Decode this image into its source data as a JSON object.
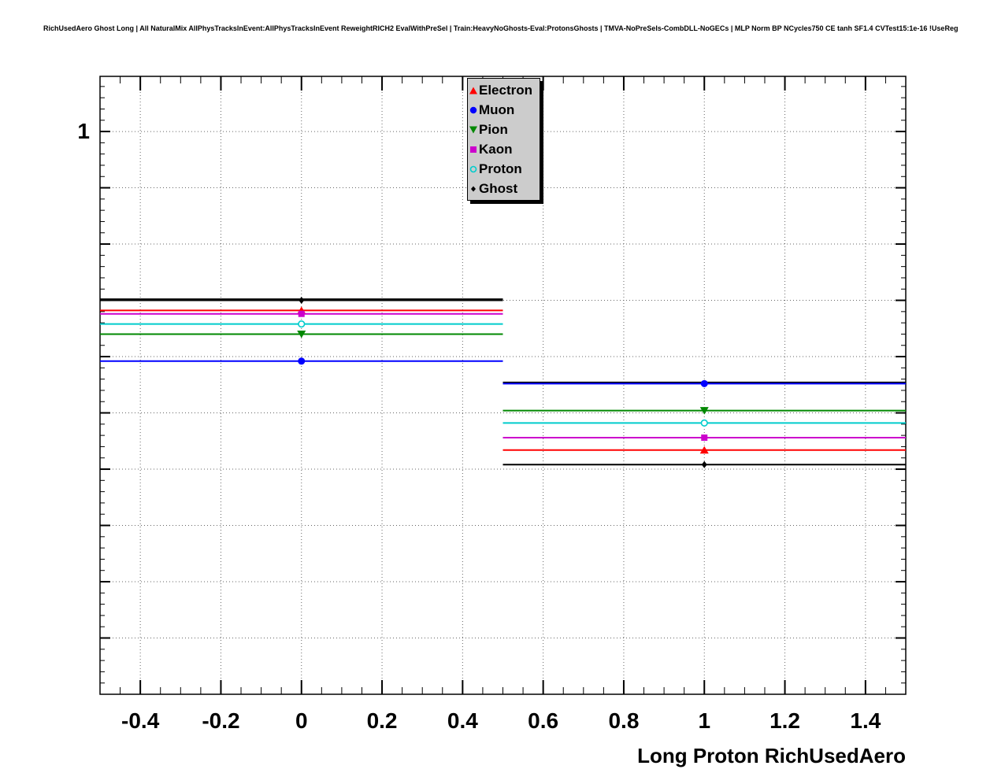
{
  "chart_data": {
    "type": "scatter",
    "title": "RichUsedAero Ghost Long | All NaturalMix AllPhysTracksInEvent:AllPhysTracksInEvent ReweightRICH2 EvalWithPreSel | Train:HeavyNoGhosts-Eval:ProtonsGhosts | TMVA-NoPreSels-CombDLL-NoGECs | MLP Norm BP NCycles750 CE tanh SF1.4 CVTest15:1e-16 !UseReg",
    "xlabel": "Long Proton RichUsedAero",
    "ylabel": "",
    "xlim": [
      -0.5,
      1.5
    ],
    "ylim": [
      0.5,
      1.049
    ],
    "x_major_ticks": [
      -0.4,
      -0.2,
      0,
      0.2,
      0.4,
      0.6,
      0.8,
      1,
      1.2,
      1.4
    ],
    "x_tick_labels": [
      "-0.4",
      "-0.2",
      "0",
      "0.2",
      "0.4",
      "0.6",
      "0.8",
      "1",
      "1.2",
      "1.4"
    ],
    "x_minor_step": 0.05,
    "y_major_step": 0.05,
    "y_minor_step": 0.01,
    "y_axis": {
      "tick_label": "1",
      "tick_value": 1.0
    },
    "grid": "dotted",
    "legend_position": "top-center",
    "legend_fill": "#cccccc",
    "bin_centers": [
      0,
      1
    ],
    "bin_edges": [
      -0.5,
      0.5,
      1.5
    ],
    "series": [
      {
        "name": "Electron",
        "color": "#ff0000",
        "marker": "triangle-up",
        "values": [
          0.841,
          0.717
        ]
      },
      {
        "name": "Muon",
        "color": "#0000ff",
        "marker": "circle",
        "values": [
          0.796,
          0.776
        ]
      },
      {
        "name": "Pion",
        "color": "#008800",
        "marker": "triangle-down",
        "values": [
          0.82,
          0.752
        ]
      },
      {
        "name": "Kaon",
        "color": "#cc00cc",
        "marker": "square",
        "values": [
          0.838,
          0.728
        ]
      },
      {
        "name": "Proton",
        "color": "#00cccc",
        "marker": "open-circle",
        "values": [
          0.829,
          0.741
        ]
      },
      {
        "name": "Ghost",
        "color": "#000000",
        "marker": "diamond",
        "values": [
          0.85,
          0.704
        ]
      }
    ],
    "unlabeled_series": [
      {
        "name": "black-line",
        "color": "#000000",
        "marker": "none",
        "values": [
          0.851,
          0.777
        ]
      }
    ]
  }
}
